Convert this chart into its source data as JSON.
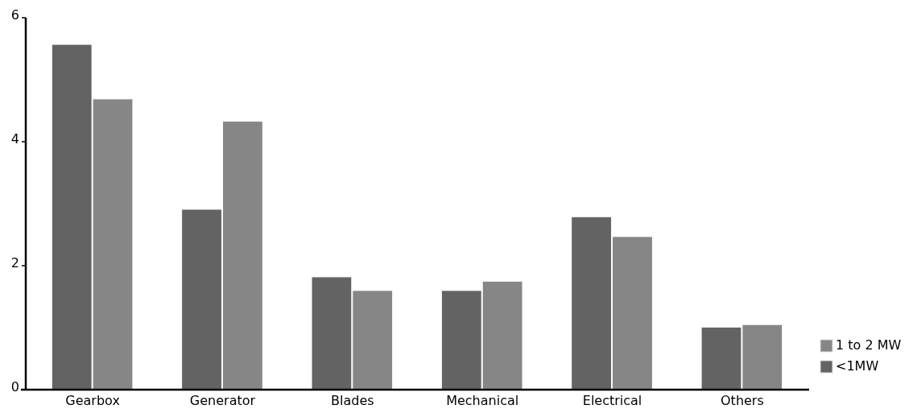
{
  "chart_data": {
    "type": "bar",
    "categories": [
      "Gearbox",
      "Generator",
      "Blades",
      "Mechanical",
      "Electrical",
      "Others"
    ],
    "series": [
      {
        "name": "<1MW",
        "color": "#636363",
        "values": [
          5.57,
          2.91,
          1.82,
          1.6,
          2.79,
          1.01
        ]
      },
      {
        "name": "1 to 2 MW",
        "color": "#868686",
        "values": [
          4.69,
          4.33,
          1.6,
          1.75,
          2.47,
          1.05
        ]
      }
    ],
    "ylim": [
      0,
      6
    ],
    "yticks": [
      0,
      2,
      4,
      6
    ],
    "legend": "bottom right",
    "grid": false
  }
}
